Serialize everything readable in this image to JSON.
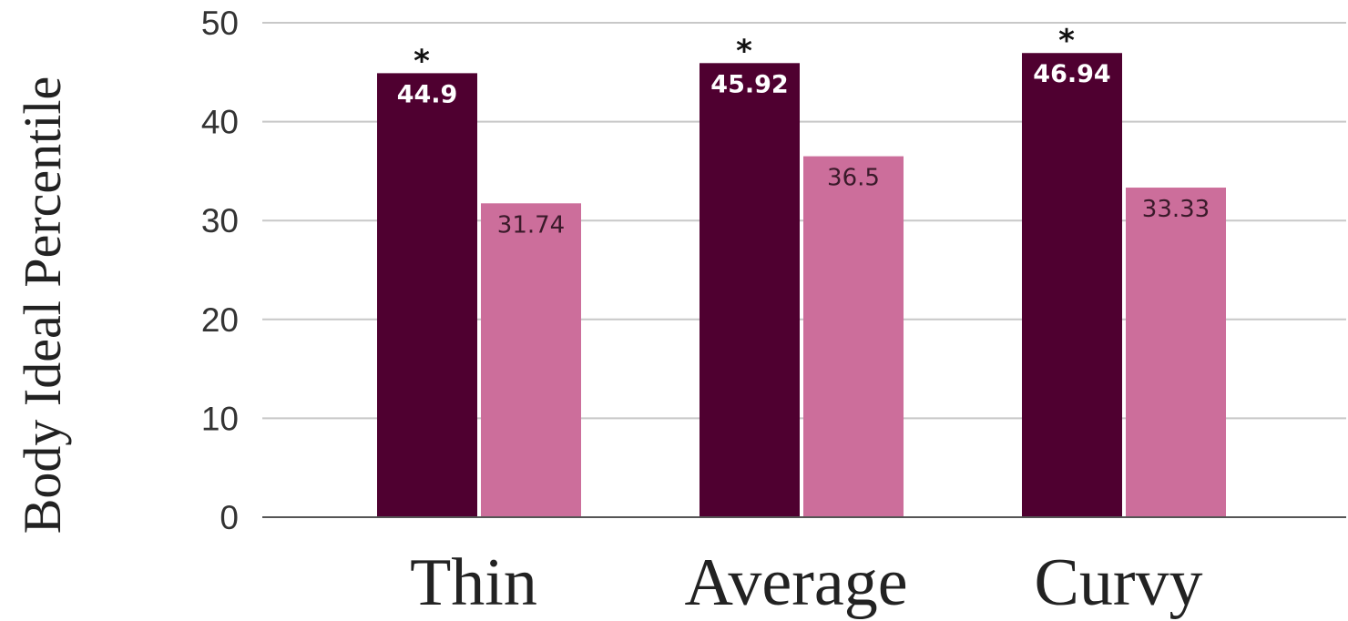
{
  "chart_data": {
    "type": "bar",
    "ylabel": "Body Ideal Percentile",
    "xlabel": "",
    "ylim": [
      0,
      50
    ],
    "yticks": [
      0,
      10,
      20,
      30,
      40,
      50
    ],
    "grid": true,
    "legend": "none",
    "categories": [
      "Thin",
      "Average",
      "Curvy"
    ],
    "series": [
      {
        "color": "#4f0030",
        "label_color": "#ffffff",
        "values": [
          44.9,
          45.92,
          46.94
        ],
        "labels": [
          "44.9",
          "45.92",
          "46.94"
        ],
        "significance": [
          "*",
          "*",
          "*"
        ]
      },
      {
        "color": "#cc6e9b",
        "label_color": "#3a1a2a",
        "values": [
          31.74,
          36.5,
          33.33
        ],
        "labels": [
          "31.74",
          "36.5",
          "33.33"
        ]
      }
    ]
  }
}
